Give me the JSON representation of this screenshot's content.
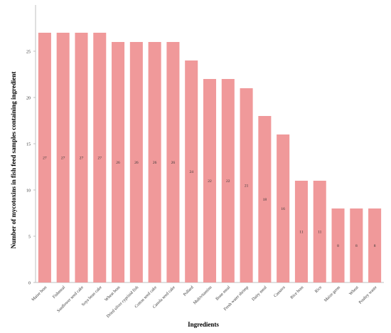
{
  "chart_data": {
    "type": "bar",
    "title": "",
    "xlabel": "Ingredients",
    "ylabel": "Number of mycotoxins in  fish feed samples containing ingredient",
    "categories": [
      "Maize bran",
      "Fishmeal",
      "Sunflower seed cake",
      "Soya bean cake",
      "Wheat bran",
      "Dried silver cyprinid fish",
      "Cotton seed cake",
      "Canola seed cake",
      "Pollard",
      "Multivitamins",
      "Bone meal",
      "Fresh water shrimp",
      "Dairy meal",
      "Cassava",
      "Rice bran",
      "Rice",
      "Maize germ",
      "Wheat",
      "Poultry waste"
    ],
    "values": [
      27,
      27,
      27,
      27,
      26,
      26,
      26,
      26,
      24,
      22,
      22,
      21,
      18,
      16,
      11,
      11,
      8,
      8,
      8
    ],
    "ylim": [
      0,
      30
    ],
    "yticks": [
      0,
      5,
      10,
      15,
      20,
      25
    ],
    "data_labels": true,
    "grid": false,
    "bar_color": "#f0999a"
  }
}
